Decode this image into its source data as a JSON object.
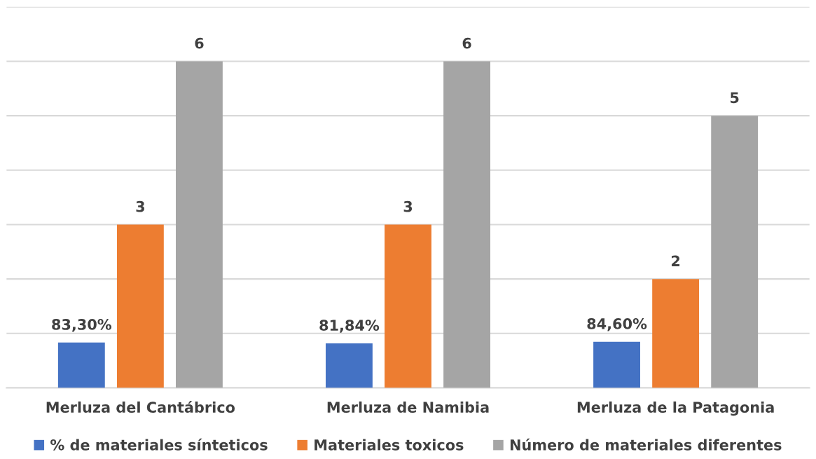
{
  "chart_data": {
    "type": "bar",
    "categories": [
      "Merluza del Cantábrico",
      "Merluza de Namibia",
      "Merluza de la Patagonia"
    ],
    "series": [
      {
        "name": "% de materiales sínteticos",
        "color": "#4472c4",
        "values": [
          0.833,
          0.8184,
          0.846
        ],
        "value_labels": [
          "83,30%",
          "81,84%",
          "84,60%"
        ]
      },
      {
        "name": "Materiales toxicos",
        "color": "#ed7d31",
        "values": [
          3,
          3,
          2
        ],
        "value_labels": [
          "3",
          "3",
          "2"
        ]
      },
      {
        "name": "Número de materiales diferentes",
        "color": "#a5a5a5",
        "values": [
          6,
          6,
          5
        ],
        "value_labels": [
          "6",
          "6",
          "5"
        ]
      }
    ],
    "ylim": [
      0,
      7
    ],
    "yticks": [
      {
        "value": 0,
        "label": null
      },
      {
        "value": 1,
        "label": null
      },
      {
        "value": 2,
        "label": null
      },
      {
        "value": 3,
        "label": null
      },
      {
        "value": 4,
        "label": null
      },
      {
        "value": 5,
        "label": null
      },
      {
        "value": 6,
        "label": null
      },
      {
        "value": 7,
        "label": null
      }
    ],
    "tick_labels": "x",
    "grid": "y",
    "legend": "bottom"
  }
}
